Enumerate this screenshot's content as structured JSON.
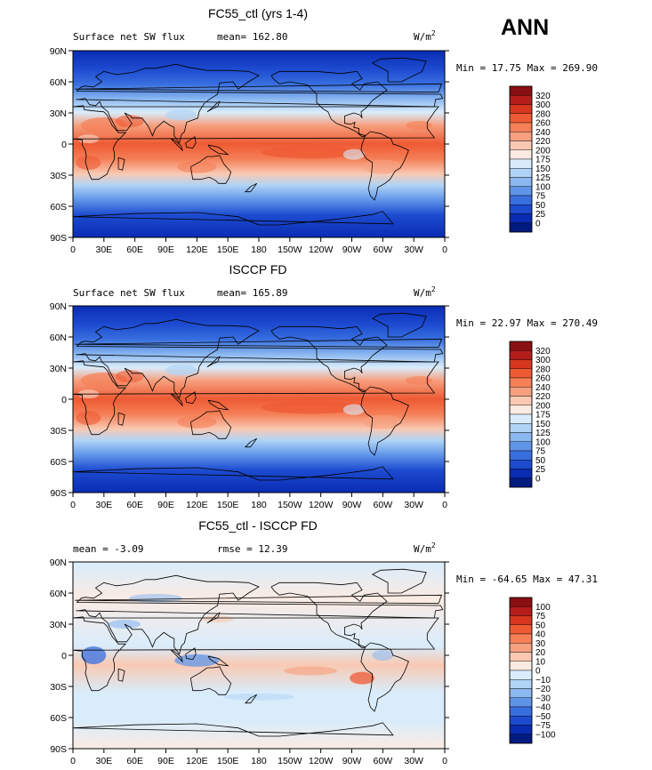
{
  "season": "ANN",
  "units_label": "W/m",
  "units_exp": "2",
  "lat_ticks": [
    "90N",
    "60N",
    "30N",
    "0",
    "30S",
    "60S",
    "90S"
  ],
  "lon_ticks": [
    "0",
    "30E",
    "60E",
    "90E",
    "120E",
    "150E",
    "180",
    "150W",
    "120W",
    "90W",
    "60W",
    "30W",
    "0"
  ],
  "chart_data": [
    {
      "type": "heatmap",
      "title": "FC55_ctl (yrs 1-4)",
      "left_label": "Surface net SW flux",
      "stat_label": "mean= 162.80",
      "range_label": "Min =  17.75 Max = 269.90",
      "min": 17.75,
      "max": 269.9,
      "mean": 162.8,
      "levels": [
        "320",
        "300",
        "280",
        "260",
        "240",
        "220",
        "200",
        "175",
        "150",
        "125",
        "100",
        "75",
        "50",
        "25",
        "0"
      ],
      "colors": [
        "#8a0f12",
        "#b51d1a",
        "#d8361f",
        "#ee5a33",
        "#f57f57",
        "#f6a07f",
        "#f9c9b3",
        "#fbebe3",
        "#d9ecfb",
        "#b0d4f6",
        "#8bb8f0",
        "#5f95e8",
        "#386fdf",
        "#1d4bd0",
        "#0a2cb4",
        "#001a80"
      ]
    },
    {
      "type": "heatmap",
      "title": "ISCCP FD",
      "left_label": "Surface net SW flux",
      "stat_label": "mean= 165.89",
      "range_label": "Min =  22.97 Max = 270.49",
      "min": 22.97,
      "max": 270.49,
      "mean": 165.89,
      "levels": [
        "320",
        "300",
        "280",
        "260",
        "240",
        "220",
        "200",
        "175",
        "150",
        "125",
        "100",
        "75",
        "50",
        "25",
        "0"
      ],
      "colors": [
        "#8a0f12",
        "#b51d1a",
        "#d8361f",
        "#ee5a33",
        "#f57f57",
        "#f6a07f",
        "#f9c9b3",
        "#fbebe3",
        "#d9ecfb",
        "#b0d4f6",
        "#8bb8f0",
        "#5f95e8",
        "#386fdf",
        "#1d4bd0",
        "#0a2cb4",
        "#001a80"
      ]
    },
    {
      "type": "heatmap",
      "title": "FC55_ctl - ISCCP FD",
      "left_label": "mean =  -3.09",
      "stat_label": "rmse =  12.39",
      "range_label": "Min = -64.65 Max =  47.31",
      "min": -64.65,
      "max": 47.31,
      "mean": -3.09,
      "rmse": 12.39,
      "levels": [
        "100",
        "75",
        "50",
        "40",
        "30",
        "20",
        "10",
        "0",
        "−10",
        "−20",
        "−30",
        "−40",
        "−50",
        "−75",
        "−100"
      ],
      "colors": [
        "#8a0f12",
        "#b51d1a",
        "#d8361f",
        "#ee5a33",
        "#f57f57",
        "#f6a07f",
        "#f9c9b3",
        "#fbebe3",
        "#d9ecfb",
        "#b0d4f6",
        "#8bb8f0",
        "#5f95e8",
        "#386fdf",
        "#1d4bd0",
        "#0a2cb4",
        "#001a80"
      ]
    }
  ]
}
